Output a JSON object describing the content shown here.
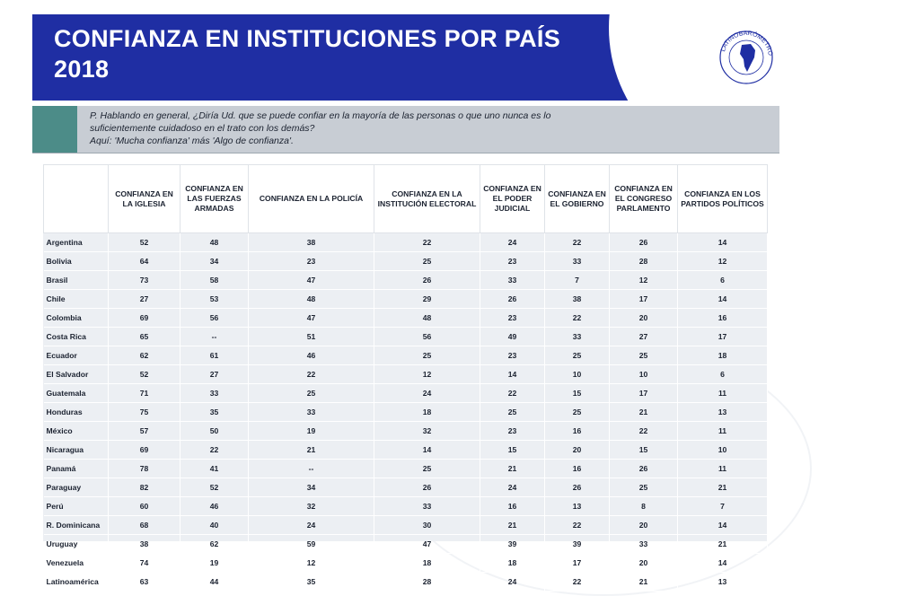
{
  "header": {
    "title_line1": "CONFIANZA EN INSTITUCIONES POR PAÍS",
    "title_line2": "2018"
  },
  "logo": {
    "text": "LATINOBARÓMETRO · 1995 · 2015"
  },
  "question": {
    "line1": "P. Hablando en general, ¿Diría Ud. que se puede confiar en la mayoría de las personas o que uno nunca es lo",
    "line2": "suficientemente cuidadoso en el trato con los demás?",
    "line3": "Aquí: 'Mucha confianza' más 'Algo de confianza'."
  },
  "table": {
    "headers": [
      "CONFIANZA EN LA IGLESIA",
      "CONFIANZA EN LAS FUERZAS ARMADAS",
      "CONFIANZA EN LA POLICÍA",
      "CONFIANZA EN LA INSTITUCIÓN ELECTORAL",
      "CONFIANZA EN EL PODER JUDICIAL",
      "CONFIANZA EN EL GOBIERNO",
      "CONFIANZA EN EL CONGRESO PARLAMENTO",
      "CONFIANZA EN LOS PARTIDOS POLÍTICOS"
    ],
    "rows": [
      {
        "country": "Argentina",
        "values": [
          "52",
          "48",
          "38",
          "22",
          "24",
          "22",
          "26",
          "14"
        ]
      },
      {
        "country": "Bolivia",
        "values": [
          "64",
          "34",
          "23",
          "25",
          "23",
          "33",
          "28",
          "12"
        ]
      },
      {
        "country": "Brasil",
        "values": [
          "73",
          "58",
          "47",
          "26",
          "33",
          "7",
          "12",
          "6"
        ]
      },
      {
        "country": "Chile",
        "values": [
          "27",
          "53",
          "48",
          "29",
          "26",
          "38",
          "17",
          "14"
        ]
      },
      {
        "country": "Colombia",
        "values": [
          "69",
          "56",
          "47",
          "48",
          "23",
          "22",
          "20",
          "16"
        ]
      },
      {
        "country": "Costa Rica",
        "values": [
          "65",
          "--",
          "51",
          "56",
          "49",
          "33",
          "27",
          "17"
        ]
      },
      {
        "country": "Ecuador",
        "values": [
          "62",
          "61",
          "46",
          "25",
          "23",
          "25",
          "25",
          "18"
        ]
      },
      {
        "country": "El Salvador",
        "values": [
          "52",
          "27",
          "22",
          "12",
          "14",
          "10",
          "10",
          "6"
        ]
      },
      {
        "country": "Guatemala",
        "values": [
          "71",
          "33",
          "25",
          "24",
          "22",
          "15",
          "17",
          "11"
        ]
      },
      {
        "country": "Honduras",
        "values": [
          "75",
          "35",
          "33",
          "18",
          "25",
          "25",
          "21",
          "13"
        ]
      },
      {
        "country": "México",
        "values": [
          "57",
          "50",
          "19",
          "32",
          "23",
          "16",
          "22",
          "11"
        ]
      },
      {
        "country": "Nicaragua",
        "values": [
          "69",
          "22",
          "21",
          "14",
          "15",
          "20",
          "15",
          "10"
        ]
      },
      {
        "country": "Panamá",
        "values": [
          "78",
          "41",
          "--",
          "25",
          "21",
          "16",
          "26",
          "11"
        ]
      },
      {
        "country": "Paraguay",
        "values": [
          "82",
          "52",
          "34",
          "26",
          "24",
          "26",
          "25",
          "21"
        ]
      },
      {
        "country": "Perú",
        "values": [
          "60",
          "46",
          "32",
          "33",
          "16",
          "13",
          "8",
          "7"
        ]
      },
      {
        "country": "R. Dominicana",
        "values": [
          "68",
          "40",
          "24",
          "30",
          "21",
          "22",
          "20",
          "14"
        ]
      },
      {
        "country": "Uruguay",
        "values": [
          "38",
          "62",
          "59",
          "47",
          "39",
          "39",
          "33",
          "21"
        ]
      },
      {
        "country": "Venezuela",
        "values": [
          "74",
          "19",
          "12",
          "18",
          "18",
          "17",
          "20",
          "14"
        ]
      },
      {
        "country": "Latinoamérica",
        "values": [
          "63",
          "44",
          "35",
          "28",
          "24",
          "22",
          "21",
          "13"
        ]
      }
    ]
  },
  "colors": {
    "header_blue": "#1f2ea3",
    "teal": "#4c8c88",
    "question_bg": "#c8cdd4",
    "table_bg": "#eceff3"
  }
}
